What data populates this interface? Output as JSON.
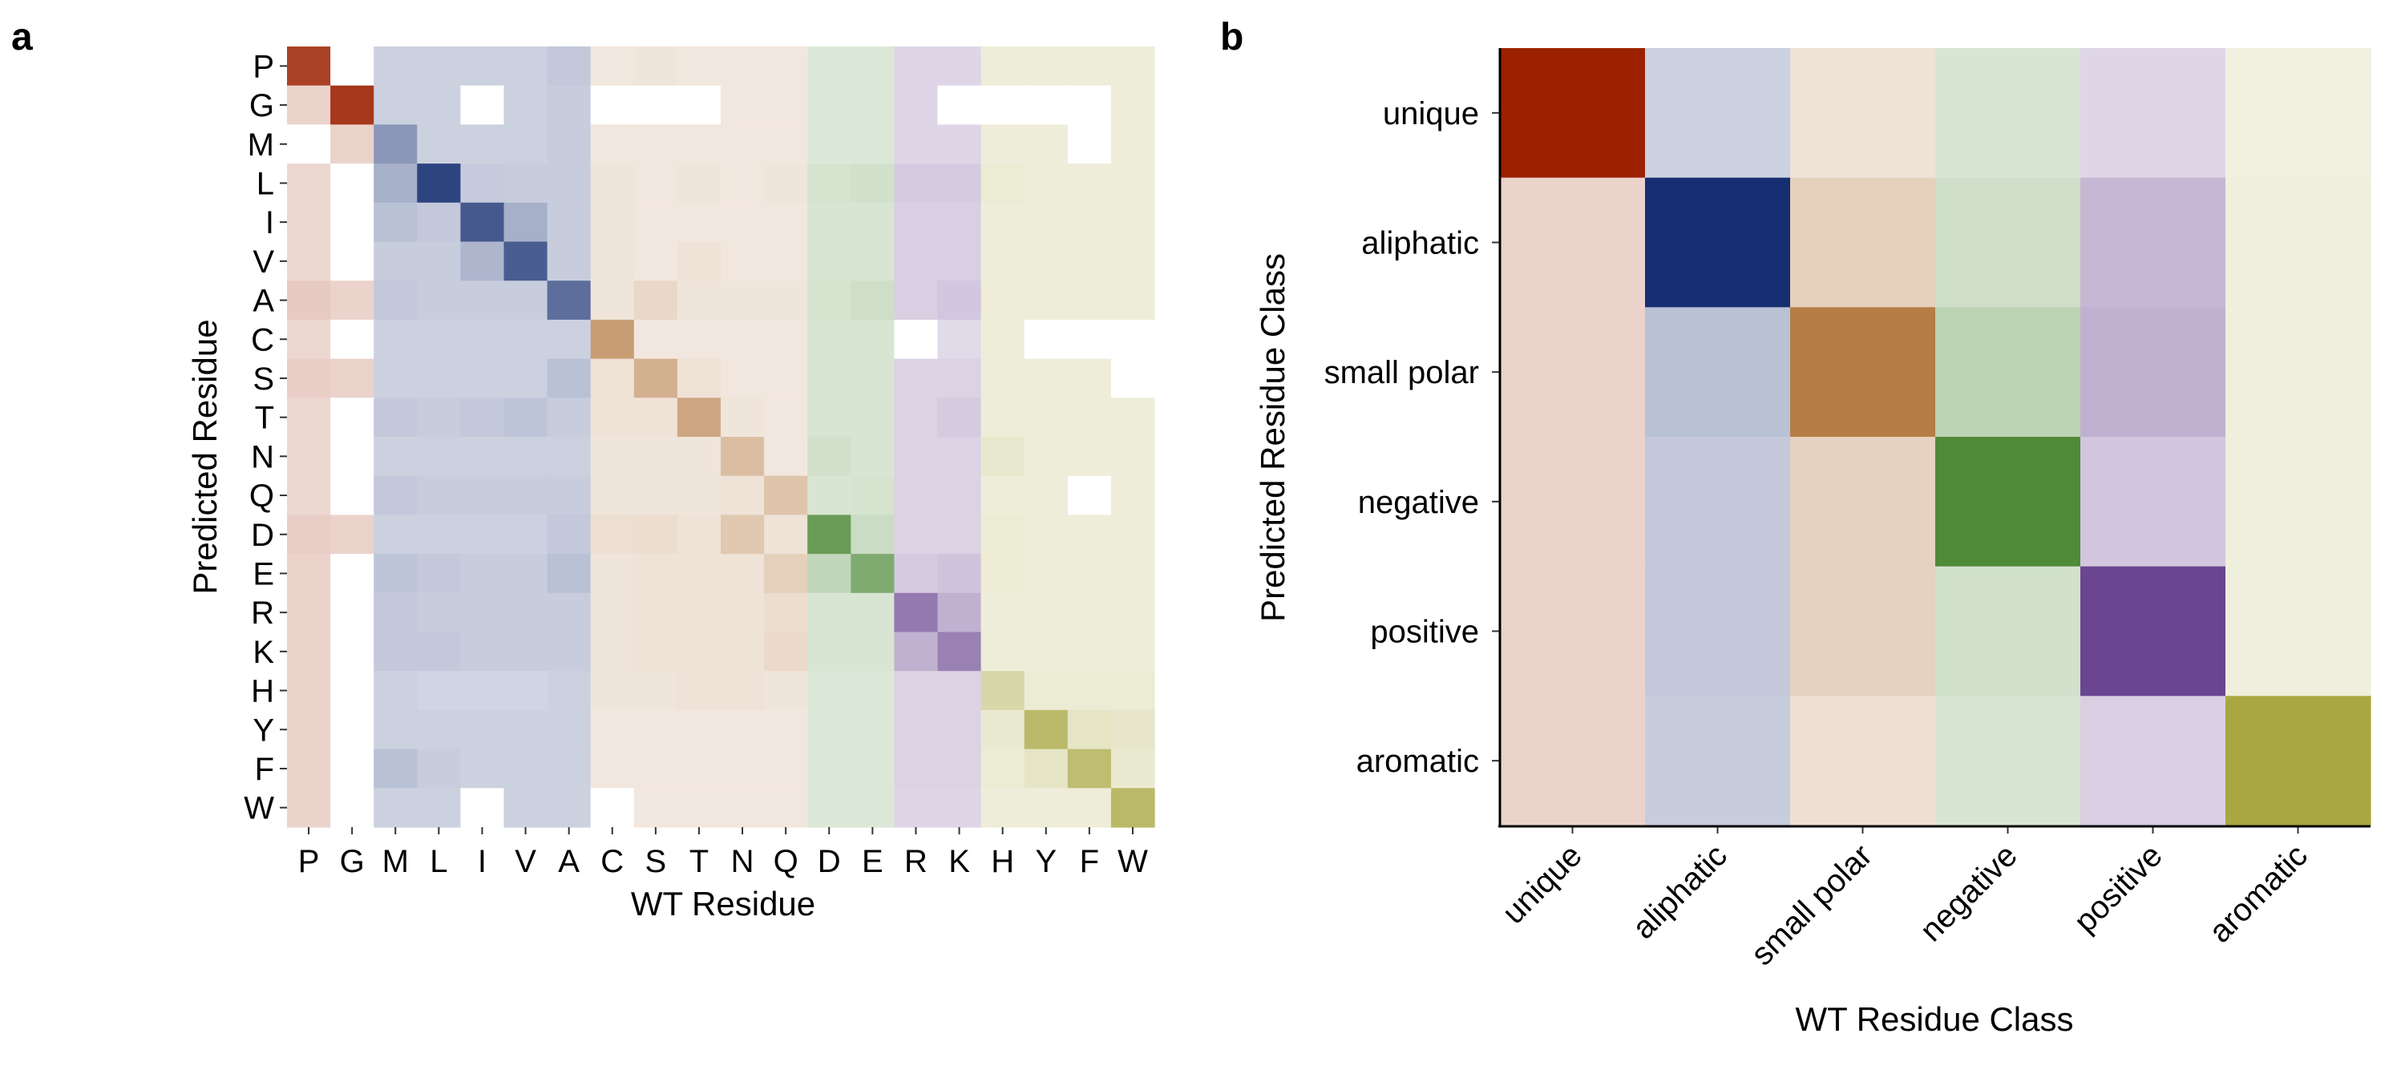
{
  "figure": {
    "panels": [
      {
        "label": "a"
      },
      {
        "label": "b"
      }
    ]
  },
  "chart_data": [
    {
      "type": "heatmap",
      "panel": "a",
      "xlabel": "WT Residue",
      "ylabel": "Predicted Residue",
      "x_categories": [
        "P",
        "G",
        "M",
        "L",
        "I",
        "V",
        "A",
        "C",
        "S",
        "T",
        "N",
        "Q",
        "D",
        "E",
        "R",
        "K",
        "H",
        "Y",
        "F",
        "W"
      ],
      "y_categories": [
        "P",
        "G",
        "M",
        "L",
        "I",
        "V",
        "A",
        "C",
        "S",
        "T",
        "N",
        "Q",
        "D",
        "E",
        "R",
        "K",
        "H",
        "Y",
        "F",
        "W"
      ],
      "color_groups": [
        {
          "group": "unique",
          "residues": [
            "P",
            "G"
          ],
          "color": "#9B2100"
        },
        {
          "group": "aliphatic",
          "residues": [
            "M",
            "L",
            "I",
            "V",
            "A"
          ],
          "color": "#172F72"
        },
        {
          "group": "small polar",
          "residues": [
            "C",
            "S",
            "T",
            "N",
            "Q"
          ],
          "color": "#B67C45"
        },
        {
          "group": "negative",
          "residues": [
            "D",
            "E"
          ],
          "color": "#4F8A39"
        },
        {
          "group": "positive",
          "residues": [
            "R",
            "K"
          ],
          "color": "#6A4590"
        },
        {
          "group": "aromatic",
          "residues": [
            "H",
            "Y",
            "F",
            "W"
          ],
          "color": "#A8A741"
        }
      ],
      "note": "cell color hue is set by the WT residue (column) group; value = shading intensity 0-1",
      "values": [
        [
          0.85,
          0.0,
          0.22,
          0.22,
          0.22,
          0.22,
          0.26,
          0.18,
          0.2,
          0.18,
          0.18,
          0.18,
          0.2,
          0.2,
          0.22,
          0.22,
          0.2,
          0.2,
          0.2,
          0.2
        ],
        [
          0.2,
          0.9,
          0.22,
          0.22,
          0.0,
          0.22,
          0.24,
          0.0,
          0.0,
          0.0,
          0.18,
          0.18,
          0.2,
          0.2,
          0.22,
          0.0,
          0.0,
          0.0,
          0.0,
          0.2
        ],
        [
          0.0,
          0.2,
          0.5,
          0.22,
          0.22,
          0.22,
          0.24,
          0.18,
          0.18,
          0.18,
          0.18,
          0.18,
          0.2,
          0.2,
          0.22,
          0.22,
          0.2,
          0.2,
          0.0,
          0.2
        ],
        [
          0.18,
          0.0,
          0.38,
          0.9,
          0.25,
          0.24,
          0.24,
          0.2,
          0.18,
          0.2,
          0.18,
          0.2,
          0.24,
          0.26,
          0.28,
          0.28,
          0.22,
          0.2,
          0.2,
          0.2
        ],
        [
          0.18,
          0.0,
          0.3,
          0.26,
          0.8,
          0.38,
          0.24,
          0.2,
          0.18,
          0.18,
          0.18,
          0.18,
          0.22,
          0.22,
          0.26,
          0.26,
          0.2,
          0.2,
          0.2,
          0.2
        ],
        [
          0.18,
          0.0,
          0.24,
          0.24,
          0.35,
          0.78,
          0.24,
          0.2,
          0.18,
          0.22,
          0.18,
          0.18,
          0.22,
          0.22,
          0.26,
          0.26,
          0.2,
          0.2,
          0.2,
          0.2
        ],
        [
          0.24,
          0.2,
          0.26,
          0.24,
          0.24,
          0.24,
          0.7,
          0.2,
          0.3,
          0.2,
          0.2,
          0.2,
          0.24,
          0.28,
          0.26,
          0.3,
          0.2,
          0.2,
          0.2,
          0.2
        ],
        [
          0.18,
          0.0,
          0.22,
          0.22,
          0.22,
          0.22,
          0.22,
          0.75,
          0.18,
          0.18,
          0.18,
          0.18,
          0.22,
          0.22,
          0.0,
          0.2,
          0.2,
          0.0,
          0.0,
          0.0
        ],
        [
          0.22,
          0.2,
          0.22,
          0.22,
          0.22,
          0.22,
          0.3,
          0.22,
          0.6,
          0.22,
          0.18,
          0.18,
          0.22,
          0.22,
          0.24,
          0.24,
          0.2,
          0.2,
          0.2,
          0.0
        ],
        [
          0.18,
          0.0,
          0.26,
          0.24,
          0.26,
          0.28,
          0.24,
          0.22,
          0.22,
          0.68,
          0.2,
          0.18,
          0.22,
          0.22,
          0.24,
          0.28,
          0.2,
          0.2,
          0.2,
          0.2
        ],
        [
          0.18,
          0.0,
          0.22,
          0.22,
          0.22,
          0.22,
          0.22,
          0.2,
          0.2,
          0.2,
          0.5,
          0.18,
          0.26,
          0.22,
          0.24,
          0.24,
          0.26,
          0.2,
          0.2,
          0.2
        ],
        [
          0.18,
          0.0,
          0.26,
          0.24,
          0.24,
          0.24,
          0.24,
          0.2,
          0.2,
          0.2,
          0.22,
          0.45,
          0.22,
          0.24,
          0.24,
          0.24,
          0.2,
          0.2,
          0.0,
          0.2
        ],
        [
          0.22,
          0.2,
          0.22,
          0.22,
          0.22,
          0.22,
          0.26,
          0.24,
          0.26,
          0.22,
          0.42,
          0.22,
          0.85,
          0.3,
          0.24,
          0.24,
          0.22,
          0.2,
          0.2,
          0.2
        ],
        [
          0.2,
          0.0,
          0.28,
          0.26,
          0.24,
          0.24,
          0.3,
          0.2,
          0.22,
          0.22,
          0.22,
          0.36,
          0.35,
          0.72,
          0.28,
          0.32,
          0.22,
          0.2,
          0.2,
          0.2
        ],
        [
          0.2,
          0.0,
          0.26,
          0.24,
          0.24,
          0.24,
          0.24,
          0.2,
          0.22,
          0.22,
          0.22,
          0.26,
          0.22,
          0.22,
          0.72,
          0.42,
          0.2,
          0.2,
          0.2,
          0.2
        ],
        [
          0.2,
          0.0,
          0.26,
          0.26,
          0.24,
          0.24,
          0.24,
          0.2,
          0.22,
          0.22,
          0.22,
          0.28,
          0.22,
          0.22,
          0.42,
          0.68,
          0.2,
          0.2,
          0.2,
          0.2
        ],
        [
          0.2,
          0.0,
          0.22,
          0.2,
          0.2,
          0.2,
          0.22,
          0.2,
          0.2,
          0.22,
          0.22,
          0.2,
          0.2,
          0.2,
          0.24,
          0.24,
          0.45,
          0.22,
          0.22,
          0.22
        ],
        [
          0.2,
          0.0,
          0.22,
          0.22,
          0.22,
          0.22,
          0.22,
          0.18,
          0.18,
          0.18,
          0.18,
          0.18,
          0.2,
          0.2,
          0.24,
          0.24,
          0.24,
          0.78,
          0.3,
          0.28
        ],
        [
          0.2,
          0.0,
          0.3,
          0.24,
          0.22,
          0.22,
          0.22,
          0.18,
          0.18,
          0.18,
          0.18,
          0.18,
          0.2,
          0.2,
          0.24,
          0.24,
          0.22,
          0.3,
          0.75,
          0.24
        ],
        [
          0.2,
          0.0,
          0.22,
          0.22,
          0.0,
          0.22,
          0.22,
          0.0,
          0.18,
          0.18,
          0.18,
          0.18,
          0.2,
          0.2,
          0.22,
          0.22,
          0.2,
          0.2,
          0.2,
          0.8
        ]
      ]
    },
    {
      "type": "heatmap",
      "panel": "b",
      "xlabel": "WT Residue Class",
      "ylabel": "Predicted Residue Class",
      "x_categories": [
        "unique",
        "aliphatic",
        "small polar",
        "negative",
        "positive",
        "aromatic"
      ],
      "y_categories": [
        "unique",
        "aliphatic",
        "small polar",
        "negative",
        "positive",
        "aromatic"
      ],
      "colors": [
        "#9B2100",
        "#172F72",
        "#B67C45",
        "#4F8A39",
        "#6A4590",
        "#A8A741"
      ],
      "note": "cell color hue is set by the WT class (column); value = shading intensity 0-1",
      "values": [
        [
          1.0,
          0.22,
          0.22,
          0.22,
          0.22,
          0.16
        ],
        [
          0.2,
          1.0,
          0.36,
          0.28,
          0.38,
          0.18
        ],
        [
          0.2,
          0.3,
          1.0,
          0.38,
          0.42,
          0.18
        ],
        [
          0.2,
          0.26,
          0.34,
          1.0,
          0.3,
          0.18
        ],
        [
          0.2,
          0.26,
          0.34,
          0.26,
          1.0,
          0.18
        ],
        [
          0.2,
          0.24,
          0.24,
          0.22,
          0.26,
          1.0
        ]
      ]
    }
  ]
}
